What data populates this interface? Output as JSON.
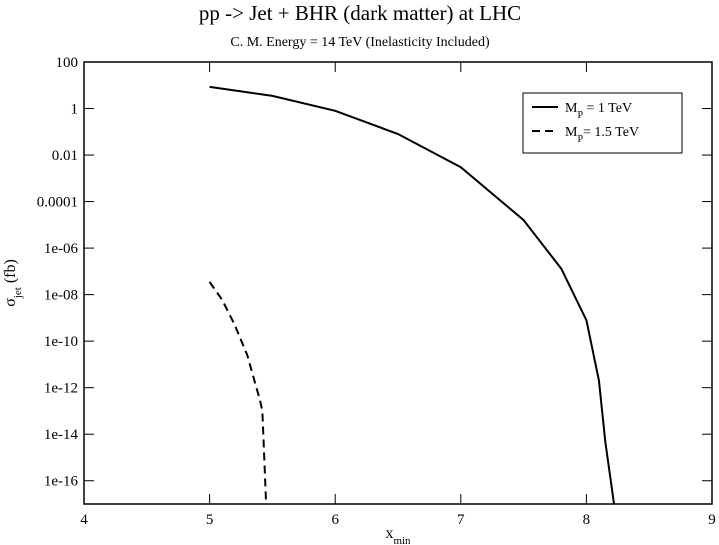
{
  "chart_data": {
    "type": "line",
    "title": "pp -> Jet + BHR (dark matter)   at LHC",
    "subtitle": "C. M. Energy = 14 TeV  (Inelasticity Included)",
    "xlabel": [
      "x",
      "min"
    ],
    "ylabel": [
      "σ",
      "jet",
      " (fb)"
    ],
    "log_y": true,
    "xlim": [
      4,
      9
    ],
    "xticks": [
      4,
      5,
      6,
      7,
      8,
      9
    ],
    "ylim": [
      1e-17,
      100
    ],
    "yticks": [
      100,
      1,
      0.01,
      0.0001,
      {
        "value": 1e-06,
        "label": "1e-06"
      },
      {
        "value": 1e-08,
        "label": "1e-08"
      },
      {
        "value": 1e-10,
        "label": "1e-10"
      },
      {
        "value": 1e-12,
        "label": "1e-12"
      },
      {
        "value": 1e-14,
        "label": "1e-14"
      },
      {
        "value": 1e-16,
        "label": "1e-16"
      }
    ],
    "legend": "upper right",
    "series": [
      {
        "name": "MP = 1 TeV",
        "color": "#000000",
        "dash": false,
        "x": [
          5,
          5.5,
          6,
          6.5,
          7,
          7.5,
          7.8,
          8.0,
          8.1,
          8.15,
          8.22
        ],
        "values": [
          8.5,
          3.5,
          0.8,
          0.08,
          0.003,
          1.6e-05,
          1.3e-07,
          8e-10,
          2e-12,
          5e-15,
          1e-17
        ]
      },
      {
        "name": "MP= 1.5 TeV",
        "color": "#000000",
        "dash": true,
        "x": [
          5,
          5.1,
          5.2,
          5.3,
          5.4,
          5.42,
          5.45
        ],
        "values": [
          3.5e-08,
          6e-09,
          5e-10,
          2.5e-11,
          3e-13,
          1e-13,
          1e-17
        ]
      }
    ]
  }
}
